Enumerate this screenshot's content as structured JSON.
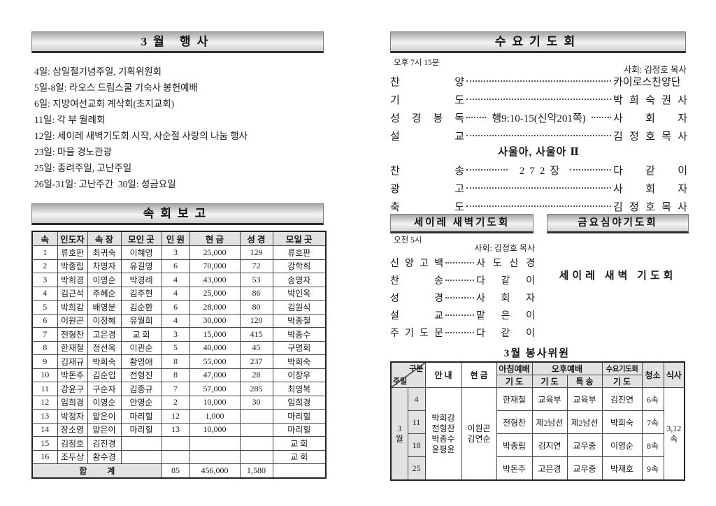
{
  "left": {
    "events": {
      "title": "3월 행사",
      "items": [
        "4일: 삼일절기념주일, 기획위원회",
        "5일-8일: 라오스 드림스쿨 기숙사 봉헌예배",
        "6일: 지방여선교회 계삭회(초지교회)",
        "11일: 각 부 월례회",
        "12일: 세이레 새벽기도회 시작, 사순절 사랑의 나눔 행사",
        "23일: 마을 경노관광",
        "25일: 종려주일, 고난주일",
        "26일-31일: 고난주간  30일: 성금요일"
      ]
    },
    "report": {
      "title": "속회보고",
      "columns": [
        "속",
        "인도자",
        "속 장",
        "모인 곳",
        "인 원",
        "현 금",
        "성 경",
        "모일 곳"
      ],
      "rows": [
        [
          "1",
          "류호판",
          "최귀숙",
          "이혜영",
          "3",
          "25,000",
          "129",
          "류호판"
        ],
        [
          "2",
          "박종립",
          "차명자",
          "유길영",
          "6",
          "70,000",
          "72",
          "강학희"
        ],
        [
          "3",
          "박희경",
          "이영순",
          "박경례",
          "4",
          "43,000",
          "53",
          "송영자"
        ],
        [
          "4",
          "김근석",
          "주혜순",
          "김주현",
          "4",
          "25,000",
          "86",
          "박인옥"
        ],
        [
          "5",
          "박희감",
          "배영분",
          "김순환",
          "6",
          "28,000",
          "80",
          "김원식"
        ],
        [
          "6",
          "이원곤",
          "이정혜",
          "유월희",
          "4",
          "30,000",
          "120",
          "박종철"
        ],
        [
          "7",
          "전형찬",
          "고은경",
          "교 회",
          "3",
          "15,000",
          "415",
          "박종수"
        ],
        [
          "8",
          "한재철",
          "정선옥",
          "이관순",
          "5",
          "40,000",
          "45",
          "구명회"
        ],
        [
          "9",
          "김재규",
          "박희숙",
          "황영애",
          "8",
          "55,000",
          "237",
          "박희숙"
        ],
        [
          "10",
          "박돈주",
          "김순입",
          "전형진",
          "8",
          "47,000",
          "28",
          "이창우"
        ],
        [
          "11",
          "강윤구",
          "구순자",
          "김종규",
          "7",
          "57,000",
          "285",
          "최영복"
        ],
        [
          "12",
          "임희경",
          "이영순",
          "안영순",
          "2",
          "10,000",
          "30",
          "임희경"
        ],
        [
          "13",
          "박정자",
          "맡은이",
          "마리힐",
          "12",
          "1,000",
          "",
          "마리힐"
        ],
        [
          "14",
          "장소영",
          "맡은이",
          "마리힐",
          "13",
          "10,000",
          "",
          "마리힐"
        ],
        [
          "15",
          "김정호",
          "김진경",
          "",
          "",
          "",
          "",
          "교 회"
        ],
        [
          "16",
          "조두상",
          "황수경",
          "",
          "",
          "",
          "",
          "교 회"
        ]
      ],
      "total_label": "합 계",
      "total_values": [
        "85",
        "456,000",
        "1,580",
        ""
      ]
    }
  },
  "right": {
    "wednesday": {
      "title": "수요기도회",
      "time": "오후 7시 15분",
      "moderator": "사회: 김정호 목사",
      "program": [
        {
          "label": "찬 양",
          "value": "카이로스찬양단"
        },
        {
          "label": "기 도",
          "value": "박 희 숙 권 사"
        },
        {
          "label": "성 경 봉 독",
          "center": "행9:10-15(신약201쪽)",
          "value": "사 회 자"
        },
        {
          "label": "설 교",
          "value": "김 정 호 목 사"
        }
      ],
      "sermon_title": "사울아, 사울아 Ⅱ",
      "program2": [
        {
          "label": "찬 송",
          "center": "272장",
          "center_class": "hymn",
          "value": "다 같 이"
        },
        {
          "label": "광 고",
          "value": "사 회 자"
        },
        {
          "label": "축 도",
          "value": "김 정 호 목 사"
        }
      ]
    },
    "dawn": {
      "title": "세이레 새벽기도회",
      "time": "오전 5시",
      "moderator": "사회: 김정호 목사",
      "program": [
        {
          "label": "신 앙 고 백",
          "value": "사 도 신 경"
        },
        {
          "label": "찬 송",
          "value": "다 같 이"
        },
        {
          "label": "성 경",
          "value": "사 회 자"
        },
        {
          "label": "설 교",
          "value": "맡 은 이"
        },
        {
          "label": "주 기 도 문",
          "value": "다 같 이"
        }
      ]
    },
    "friday": {
      "title": "금요심야기도회",
      "note": "세이레 새벽 기도회"
    },
    "volunteers": {
      "title": "3월 봉사위원",
      "header": {
        "gubun": "구분",
        "juil": "주일",
        "annae": "안 내",
        "hyeongeum": "현 금",
        "morning": "아침예배",
        "afternoon": "오후예배",
        "wed": "수요기도회",
        "gido": "기 도",
        "teuksong": "특 송",
        "cheongso": "청소",
        "siksa": "식사"
      },
      "month": "3월",
      "annae_names": [
        "박희감",
        "전형찬",
        "박종수",
        "윤평윤"
      ],
      "hyeongeum_names": [
        "이원곤",
        "김연순"
      ],
      "siksa_lines": [
        "3,12",
        "속"
      ],
      "rows": [
        {
          "date": "4",
          "cells": [
            "한재철",
            "교육부",
            "교육부",
            "김진연",
            "6속"
          ]
        },
        {
          "date": "11",
          "cells": [
            "전형찬",
            "제2남선",
            "제2남선",
            "박희숙",
            "7속"
          ]
        },
        {
          "date": "18",
          "cells": [
            "박종립",
            "김지연",
            "교우중",
            "이영순",
            "8속"
          ]
        },
        {
          "date": "25",
          "cells": [
            "박돈주",
            "고은경",
            "교우중",
            "박재호",
            "9속"
          ]
        }
      ]
    }
  }
}
